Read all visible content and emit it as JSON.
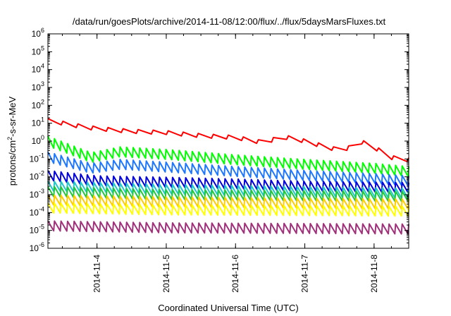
{
  "chart_data": {
    "type": "line",
    "title": "/data/run/goesPlots/archive/2014-11-08/12:00/flux/../flux/5daysMarsFluxes.txt",
    "xlabel": "Coordinated Universal Time (UTC)",
    "ylabel": "protons/cm²-s-sr-MeV",
    "ylabel_base": "protons/cm",
    "ylabel_exp": "2",
    "ylabel_rest": "-s-sr-MeV",
    "yscale": "log",
    "ylim": [
      1e-06,
      1000000.0
    ],
    "xlim": [
      "2014-11-03T07:00",
      "2014-11-08T12:00"
    ],
    "xticks": [
      "2014-11-4",
      "2014-11-5",
      "2014-11-6",
      "2014-11-7",
      "2014-11-8"
    ],
    "y_tick_exponents": [
      -6,
      -5,
      -4,
      -3,
      -2,
      -1,
      0,
      1,
      2,
      3,
      4,
      5,
      6
    ],
    "y_tick_base": "10",
    "grid": false,
    "legend": "none",
    "series": [
      {
        "color": "#ff0000",
        "pattern": "sawtooth",
        "teeth": 24,
        "trend": [
          [
            "2014-11-03T07:00",
            14
          ],
          [
            "2014-11-03T20:00",
            6
          ],
          [
            "2014-11-04T00:00",
            5
          ],
          [
            "2014-11-04T12:00",
            3.5
          ],
          [
            "2014-11-05T00:00",
            3
          ],
          [
            "2014-11-05T12:00",
            2
          ],
          [
            "2014-11-06T00:00",
            1.6
          ],
          [
            "2014-11-06T10:00",
            0.8
          ],
          [
            "2014-11-06T16:00",
            1.8
          ],
          [
            "2014-11-06T22:00",
            1.2
          ],
          [
            "2014-11-07T12:00",
            0.3
          ],
          [
            "2014-11-07T16:00",
            0.45
          ],
          [
            "2014-11-07T19:00",
            1.0
          ],
          [
            "2014-11-08T00:00",
            0.45
          ],
          [
            "2014-11-08T06:00",
            0.12
          ],
          [
            "2014-11-08T12:00",
            0.09
          ]
        ]
      },
      {
        "color": "#00ff00",
        "pattern": "sawtooth",
        "teeth": 55,
        "trend": [
          [
            "2014-11-03T07:00",
            1.0
          ],
          [
            "2014-11-03T22:00",
            0.12
          ],
          [
            "2014-11-04T08:00",
            0.25
          ],
          [
            "2014-11-05T00:00",
            0.18
          ],
          [
            "2014-11-06T00:00",
            0.09
          ],
          [
            "2014-11-07T00:00",
            0.05
          ],
          [
            "2014-11-08T00:00",
            0.03
          ],
          [
            "2014-11-08T12:00",
            0.02
          ]
        ]
      },
      {
        "color": "#1e78ff",
        "pattern": "sawtooth",
        "teeth": 55,
        "trend": [
          [
            "2014-11-03T07:00",
            0.13
          ],
          [
            "2014-11-03T22:00",
            0.03
          ],
          [
            "2014-11-04T08:00",
            0.05
          ],
          [
            "2014-11-05T00:00",
            0.035
          ],
          [
            "2014-11-06T00:00",
            0.02
          ],
          [
            "2014-11-07T00:00",
            0.012
          ],
          [
            "2014-11-08T00:00",
            0.008
          ],
          [
            "2014-11-08T12:00",
            0.006
          ]
        ]
      },
      {
        "color": "#0000dd",
        "pattern": "sawtooth",
        "teeth": 55,
        "trend": [
          [
            "2014-11-03T07:00",
            0.012
          ],
          [
            "2014-11-04T00:00",
            0.006
          ],
          [
            "2014-11-05T00:00",
            0.005
          ],
          [
            "2014-11-06T00:00",
            0.004
          ],
          [
            "2014-11-07T00:00",
            0.003
          ],
          [
            "2014-11-08T12:00",
            0.0025
          ]
        ]
      },
      {
        "color": "#1fc8c8",
        "pattern": "sawtooth",
        "teeth": 55,
        "trend": [
          [
            "2014-11-03T07:00",
            0.003
          ],
          [
            "2014-11-05T00:00",
            0.002
          ],
          [
            "2014-11-07T00:00",
            0.0015
          ],
          [
            "2014-11-08T12:00",
            0.0012
          ]
        ]
      },
      {
        "color": "#22c83c",
        "pattern": "sawtooth",
        "teeth": 55,
        "trend": [
          [
            "2014-11-03T07:00",
            0.0015
          ],
          [
            "2014-11-05T00:00",
            0.001
          ],
          [
            "2014-11-08T12:00",
            0.0008
          ]
        ]
      },
      {
        "color": "#ffcc00",
        "pattern": "sawtooth",
        "teeth": 55,
        "trend": [
          [
            "2014-11-03T07:00",
            0.0005
          ],
          [
            "2014-11-05T00:00",
            0.0004
          ],
          [
            "2014-11-08T12:00",
            0.0003
          ]
        ]
      },
      {
        "color": "#ffff00",
        "pattern": "sawtooth",
        "teeth": 55,
        "trend": [
          [
            "2014-11-03T07:00",
            0.00018
          ],
          [
            "2014-11-05T00:00",
            0.00014
          ],
          [
            "2014-11-08T12:00",
            0.00012
          ]
        ]
      },
      {
        "color": "#a0307a",
        "pattern": "sawtooth",
        "teeth": 55,
        "trend": [
          [
            "2014-11-03T07:00",
            1.8e-05
          ],
          [
            "2014-11-05T00:00",
            1.4e-05
          ],
          [
            "2014-11-08T12:00",
            1.2e-05
          ]
        ]
      }
    ]
  }
}
